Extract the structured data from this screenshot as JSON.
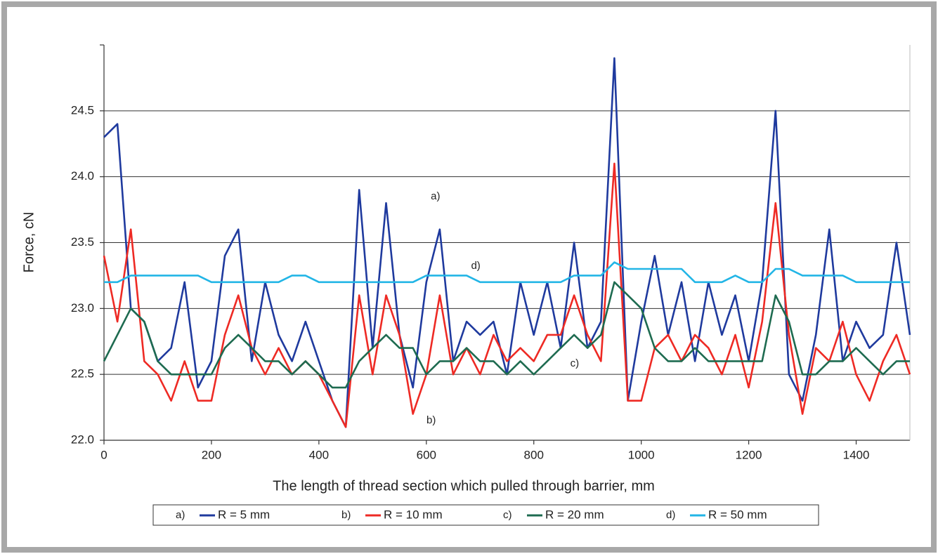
{
  "chart_data": {
    "type": "line",
    "x_label": "The length of thread section which pulled through barrier, mm",
    "y_label": "Force, cN",
    "xlim": [
      0,
      1500
    ],
    "ylim": [
      22,
      25
    ],
    "xticks": [
      0,
      200,
      400,
      600,
      800,
      1000,
      1200,
      1400
    ],
    "yticks": [
      {
        "value": 22,
        "label": "22.0"
      },
      22.5,
      {
        "value": 23,
        "label": "23.0"
      },
      23.5,
      {
        "value": 24,
        "label": "24.0"
      },
      24.5
    ],
    "grid": true,
    "x": [
      0,
      25,
      50,
      75,
      100,
      125,
      150,
      175,
      200,
      225,
      250,
      275,
      300,
      325,
      350,
      375,
      400,
      425,
      450,
      475,
      500,
      525,
      550,
      575,
      600,
      625,
      650,
      675,
      700,
      725,
      750,
      775,
      800,
      825,
      850,
      875,
      900,
      925,
      950,
      975,
      1000,
      1025,
      1050,
      1075,
      1100,
      1125,
      1150,
      1175,
      1200,
      1225,
      1250,
      1275,
      1300,
      1325,
      1350,
      1375,
      1400,
      1425,
      1450,
      1475,
      1500
    ],
    "series": [
      {
        "label": "a)",
        "name": "R = 5 mm",
        "color": "#1f3a9e",
        "values": [
          24.3,
          24.4,
          23.0,
          22.9,
          22.6,
          22.7,
          23.2,
          22.4,
          22.6,
          23.4,
          23.6,
          22.6,
          23.2,
          22.8,
          22.6,
          22.9,
          22.6,
          22.3,
          22.1,
          23.9,
          22.7,
          23.8,
          22.8,
          22.4,
          23.2,
          23.6,
          22.6,
          22.9,
          22.8,
          22.9,
          22.5,
          23.2,
          22.8,
          23.2,
          22.7,
          23.5,
          22.7,
          22.9,
          24.9,
          22.3,
          22.9,
          23.4,
          22.8,
          23.2,
          22.6,
          23.2,
          22.8,
          23.1,
          22.6,
          23.2,
          24.5,
          22.5,
          22.3,
          22.8,
          23.6,
          22.6,
          22.9,
          22.7,
          22.8,
          23.5,
          22.8
        ]
      },
      {
        "label": "b)",
        "name": "R = 10 mm",
        "color": "#ee2a24",
        "values": [
          23.4,
          22.9,
          23.6,
          22.6,
          22.5,
          22.3,
          22.6,
          22.3,
          22.3,
          22.8,
          23.1,
          22.7,
          22.5,
          22.7,
          22.5,
          22.6,
          22.5,
          22.3,
          22.1,
          23.1,
          22.5,
          23.1,
          22.8,
          22.2,
          22.5,
          23.1,
          22.5,
          22.7,
          22.5,
          22.8,
          22.6,
          22.7,
          22.6,
          22.8,
          22.8,
          23.1,
          22.8,
          22.6,
          24.1,
          22.3,
          22.3,
          22.7,
          22.8,
          22.6,
          22.8,
          22.7,
          22.5,
          22.8,
          22.4,
          22.9,
          23.8,
          22.8,
          22.2,
          22.7,
          22.6,
          22.9,
          22.5,
          22.3,
          22.6,
          22.8,
          22.5
        ]
      },
      {
        "label": "c)",
        "name": "R = 20 mm",
        "color": "#1e6b50",
        "values": [
          22.6,
          22.8,
          23.0,
          22.9,
          22.6,
          22.5,
          22.5,
          22.5,
          22.5,
          22.7,
          22.8,
          22.7,
          22.6,
          22.6,
          22.5,
          22.6,
          22.5,
          22.4,
          22.4,
          22.6,
          22.7,
          22.8,
          22.7,
          22.7,
          22.5,
          22.6,
          22.6,
          22.7,
          22.6,
          22.6,
          22.5,
          22.6,
          22.5,
          22.6,
          22.7,
          22.8,
          22.7,
          22.8,
          23.2,
          23.1,
          23.0,
          22.7,
          22.6,
          22.6,
          22.7,
          22.6,
          22.6,
          22.6,
          22.6,
          22.6,
          23.1,
          22.9,
          22.5,
          22.5,
          22.6,
          22.6,
          22.7,
          22.6,
          22.5,
          22.6,
          22.6
        ]
      },
      {
        "label": "d)",
        "name": "R = 50 mm",
        "color": "#22b5e6",
        "values": [
          23.2,
          23.2,
          23.25,
          23.25,
          23.25,
          23.25,
          23.25,
          23.25,
          23.2,
          23.2,
          23.2,
          23.2,
          23.2,
          23.2,
          23.25,
          23.25,
          23.2,
          23.2,
          23.2,
          23.2,
          23.2,
          23.2,
          23.2,
          23.2,
          23.25,
          23.25,
          23.25,
          23.25,
          23.2,
          23.2,
          23.2,
          23.2,
          23.2,
          23.2,
          23.2,
          23.25,
          23.25,
          23.25,
          23.35,
          23.3,
          23.3,
          23.3,
          23.3,
          23.3,
          23.2,
          23.2,
          23.2,
          23.25,
          23.2,
          23.2,
          23.3,
          23.3,
          23.25,
          23.25,
          23.25,
          23.25,
          23.2,
          23.2,
          23.2,
          23.2,
          23.2
        ]
      }
    ],
    "annotations": [
      {
        "text": "a)",
        "x": 617,
        "y": 23.85
      },
      {
        "text": "d)",
        "x": 692,
        "y": 23.32
      },
      {
        "text": "c)",
        "x": 876,
        "y": 22.58
      },
      {
        "text": "b)",
        "x": 609,
        "y": 22.15
      }
    ]
  }
}
